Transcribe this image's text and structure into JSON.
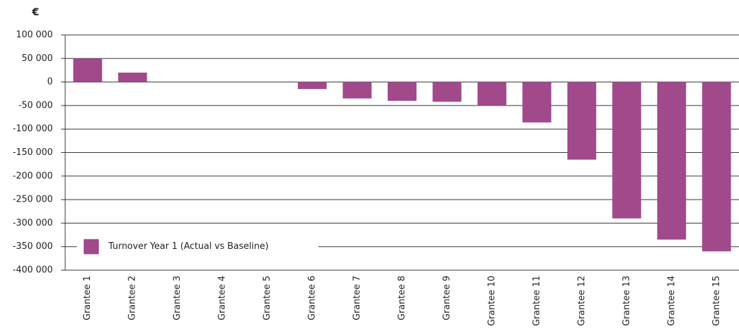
{
  "chart_data": {
    "type": "bar",
    "y_label": "€",
    "categories": [
      "Grantee 1",
      "Grantee 2",
      "Grantee 3",
      "Grantee 4",
      "Grantee 5",
      "Grantee 6",
      "Grantee 7",
      "Grantee 8",
      "Grantee 9",
      "Grantee 10",
      "Grantee 11",
      "Grantee 12",
      "Grantee 13",
      "Grantee 14",
      "Grantee 15"
    ],
    "series": [
      {
        "name": "Turnover Year 1 (Actual vs Baseline)",
        "color": "#a04a8b",
        "values": [
          50000,
          20000,
          0,
          0,
          0,
          -15000,
          -35000,
          -40000,
          -42000,
          -50000,
          -86000,
          -165000,
          -290000,
          -335000,
          -360000
        ]
      }
    ],
    "ylim": [
      -400000,
      100000
    ],
    "yticks": [
      {
        "value": -400000,
        "label": "-400 000"
      },
      {
        "value": -350000,
        "label": "-350 000"
      },
      {
        "value": -300000,
        "label": "-300 000"
      },
      {
        "value": -250000,
        "label": "-250 000"
      },
      {
        "value": -200000,
        "label": "-200 000"
      },
      {
        "value": -150000,
        "label": "-150 000"
      },
      {
        "value": -100000,
        "label": "-100 000"
      },
      {
        "value": -50000,
        "label": "-50 000"
      },
      0,
      {
        "value": 50000,
        "label": "50 000"
      },
      {
        "value": 100000,
        "label": "100 000"
      }
    ],
    "grid": true,
    "legend": "bottom-left"
  }
}
